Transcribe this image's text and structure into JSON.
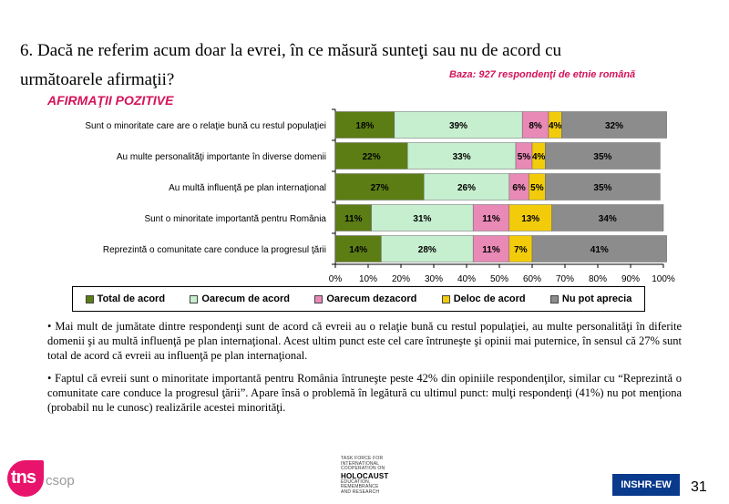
{
  "question": "6. Dacă ne referim acum doar la evrei, în ce măsură sunteţi sau nu de acord cu următoarele afirmaţii?",
  "base_note": "Baza: 927 respondenţi de etnie română",
  "section_title": "AFIRMAŢII POZITIVE",
  "chart_data": {
    "type": "bar",
    "orientation": "horizontal",
    "stacked": true,
    "categories": [
      "Sunt o minoritate care are o relaţie bună cu restul populaţiei",
      "Au multe personalităţi importante în diverse domenii",
      "Au multă influenţă pe plan internaţional",
      "Sunt o minoritate importantă pentru România",
      "Reprezintă o comunitate care conduce la progresul ţării"
    ],
    "series": [
      {
        "name": "Total de acord",
        "color": "#5c7d14",
        "values": [
          18,
          22,
          27,
          11,
          14
        ]
      },
      {
        "name": "Oarecum de acord",
        "color": "#c6efcf",
        "values": [
          39,
          33,
          26,
          31,
          28
        ]
      },
      {
        "name": "Oarecum dezacord",
        "color": "#e889b6",
        "values": [
          8,
          5,
          6,
          11,
          11
        ]
      },
      {
        "name": "Deloc de acord",
        "color": "#f2cc0a",
        "values": [
          4,
          4,
          5,
          13,
          7
        ]
      },
      {
        "name": "Nu pot aprecia",
        "color": "#8c8c8c",
        "values": [
          32,
          35,
          35,
          34,
          41
        ]
      }
    ],
    "x_ticks": [
      "0%",
      "10%",
      "20%",
      "30%",
      "40%",
      "50%",
      "60%",
      "70%",
      "80%",
      "90%",
      "100%"
    ],
    "xlim": [
      0,
      100
    ],
    "value_suffix": "%",
    "legend_position": "bottom"
  },
  "bullets": [
    "• Mai mult de jumătate dintre respondenţi sunt de acord că evreii au o relaţie bună cu restul populaţiei, au multe personalităţi în diferite domenii şi au multă influenţă pe plan internaţional. Acest ultim punct este cel care întruneşte şi opinii mai puternice, în sensul că 27% sunt total de acord că evreii au influenţă pe plan internaţional.",
    "• Faptul că evreii sunt o minoritate importantă pentru România întruneşte peste 42% din opiniile respondenţilor, similar cu “Reprezintă o comunitate care conduce la progresul ţării”. Apare însă o problemă în legătură cu ultimul punct: mulţi respondenţi (41%) nu pot menţiona (probabil nu le cunosc) realizările acestei minorităţi."
  ],
  "footer": {
    "tns": "tns",
    "csop": "csop",
    "taskforce_lines": [
      "TASK FORCE FOR",
      "INTERNATIONAL",
      "COOPERATION ON",
      "HOLOCAUST",
      "EDUCATION,",
      "REMEMBRANCE",
      "AND RESEARCH"
    ],
    "instr": "INSHR-EW",
    "page_number": "31"
  }
}
